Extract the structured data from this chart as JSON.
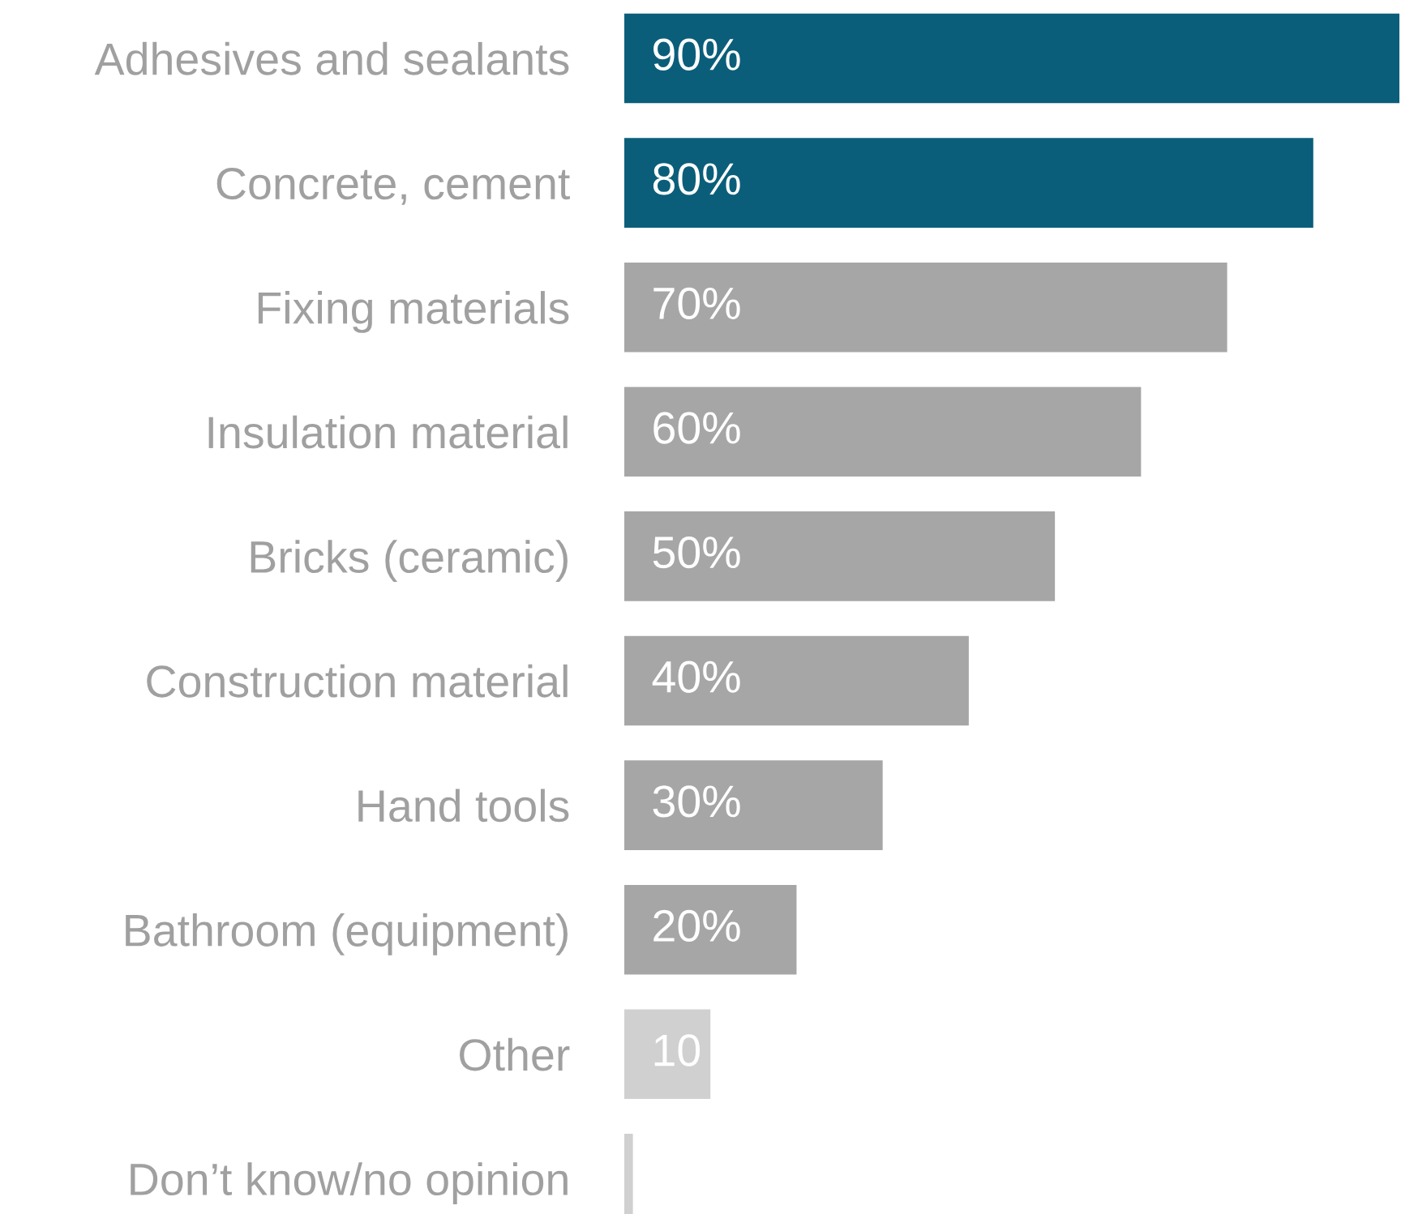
{
  "chart_data": {
    "type": "bar",
    "orientation": "horizontal",
    "categories": [
      "Adhesives and sealants",
      "Concrete, cement",
      "Fixing materials",
      "Insulation material",
      "Bricks (ceramic)",
      "Construction material",
      "Hand tools",
      "Bathroom (equipment)",
      "Other",
      "Don’t know/no opinion"
    ],
    "values": [
      90,
      80,
      70,
      60,
      50,
      40,
      30,
      20,
      10,
      1
    ],
    "value_labels": [
      "90%",
      "80%",
      "70%",
      "60%",
      "50%",
      "40%",
      "30%",
      "20%",
      "10",
      null
    ],
    "colors": [
      "#0b5e7a",
      "#0b5e7a",
      "#a6a6a6",
      "#a6a6a6",
      "#a6a6a6",
      "#a6a6a6",
      "#a6a6a6",
      "#a6a6a6",
      "#d0d0d0",
      "#d0d0d0"
    ],
    "grid": false,
    "legend": false
  }
}
